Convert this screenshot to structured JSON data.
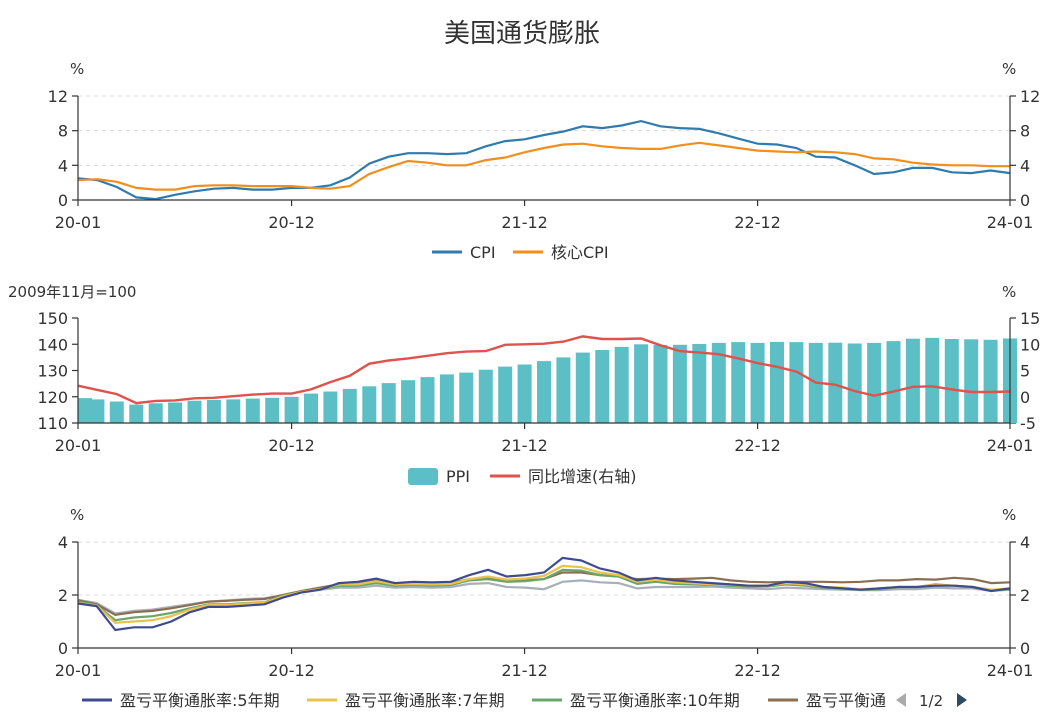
{
  "title": "美国通货膨胀",
  "colors": {
    "cpi": "#2f7bae",
    "core_cpi": "#f28e1c",
    "ppi": "#5bbfc5",
    "ppi_yoy": "#e0524c",
    "be5": "#3e4c8f",
    "be7": "#e8c24b",
    "be10": "#68a66d",
    "be_next": "#8b6e52",
    "be_hidden": "#a7b0b8",
    "axis": "#333333",
    "pager_disabled": "#aaaaaa",
    "pager_active": "#2e4a63"
  },
  "chart_data": [
    {
      "type": "line",
      "x_range": [
        "2020-01",
        "2024-01"
      ],
      "x_ticks": [
        "20-01",
        "20-12",
        "21-12",
        "22-12",
        "24-01"
      ],
      "left_unit": "%",
      "right_unit": "%",
      "ylim": [
        0,
        12
      ],
      "y_ticks": [
        "0",
        "4",
        "8",
        "12"
      ],
      "right_ticks": [
        "0",
        "4",
        "8",
        "12"
      ],
      "grid": true,
      "legend_position": "bottom",
      "series": [
        {
          "name": "CPI",
          "color_key": "cpi",
          "values": [
            2.5,
            2.3,
            1.5,
            0.3,
            0.1,
            0.6,
            1.0,
            1.3,
            1.4,
            1.2,
            1.2,
            1.4,
            1.4,
            1.7,
            2.6,
            4.2,
            5.0,
            5.4,
            5.4,
            5.3,
            5.4,
            6.2,
            6.8,
            7.0,
            7.5,
            7.9,
            8.5,
            8.3,
            8.6,
            9.1,
            8.5,
            8.3,
            8.2,
            7.7,
            7.1,
            6.5,
            6.4,
            6.0,
            5.0,
            4.9,
            4.0,
            3.0,
            3.2,
            3.7,
            3.7,
            3.2,
            3.1,
            3.4,
            3.1
          ]
        },
        {
          "name": "核心CPI",
          "color_key": "core_cpi",
          "values": [
            2.3,
            2.4,
            2.1,
            1.4,
            1.2,
            1.2,
            1.6,
            1.7,
            1.7,
            1.6,
            1.6,
            1.6,
            1.4,
            1.3,
            1.6,
            3.0,
            3.8,
            4.5,
            4.3,
            4.0,
            4.0,
            4.6,
            4.9,
            5.5,
            6.0,
            6.4,
            6.5,
            6.2,
            6.0,
            5.9,
            5.9,
            6.3,
            6.6,
            6.3,
            6.0,
            5.7,
            5.6,
            5.5,
            5.6,
            5.5,
            5.3,
            4.8,
            4.7,
            4.3,
            4.1,
            4.0,
            4.0,
            3.9,
            3.9
          ]
        }
      ]
    },
    {
      "type": "bar+line",
      "x_range": [
        "2020-01",
        "2024-01"
      ],
      "x_ticks": [
        "20-01",
        "20-12",
        "21-12",
        "22-12",
        "24-01"
      ],
      "left_unit": "2009年11月=100",
      "right_unit": "%",
      "ylim": [
        110,
        150
      ],
      "y_ticks": [
        "110",
        "120",
        "130",
        "140",
        "150"
      ],
      "right_ylim": [
        -5,
        15
      ],
      "right_ticks": [
        "-5",
        "0",
        "5",
        "10",
        "15"
      ],
      "grid": false,
      "legend_position": "bottom",
      "series": [
        {
          "name": "PPI",
          "type": "bar",
          "axis": "left",
          "color_key": "ppi",
          "values": [
            119.5,
            119.0,
            118.2,
            117.0,
            117.5,
            117.8,
            118.5,
            118.8,
            119.0,
            119.3,
            119.6,
            120.0,
            121.2,
            122.0,
            123.0,
            124.0,
            125.2,
            126.3,
            127.5,
            128.5,
            129.2,
            130.3,
            131.5,
            132.3,
            133.6,
            135.0,
            136.8,
            137.8,
            139.0,
            140.0,
            139.7,
            139.8,
            140.1,
            140.5,
            140.8,
            140.5,
            140.9,
            140.8,
            140.5,
            140.6,
            140.3,
            140.5,
            141.2,
            142.1,
            142.4,
            142.0,
            141.9,
            141.7,
            142.2
          ]
        },
        {
          "name": "同比增速(右轴)",
          "type": "line",
          "axis": "right",
          "color_key": "ppi_yoy",
          "values": [
            2.1,
            1.3,
            0.5,
            -1.2,
            -0.8,
            -0.7,
            -0.3,
            -0.2,
            0.1,
            0.4,
            0.6,
            0.6,
            1.4,
            2.8,
            4.0,
            6.3,
            6.9,
            7.3,
            7.8,
            8.3,
            8.6,
            8.7,
            9.9,
            10.0,
            10.1,
            10.5,
            11.5,
            11.0,
            11.0,
            11.1,
            9.8,
            8.7,
            8.4,
            8.1,
            7.3,
            6.4,
            5.7,
            4.8,
            2.7,
            2.3,
            1.1,
            0.2,
            1.0,
            1.9,
            2.0,
            1.4,
            0.9,
            0.9,
            1.0
          ]
        }
      ]
    },
    {
      "type": "line",
      "x_range": [
        "2020-01",
        "2024-01"
      ],
      "x_ticks": [
        "20-01",
        "20-12",
        "21-12",
        "22-12",
        "24-01"
      ],
      "left_unit": "%",
      "right_unit": "%",
      "ylim": [
        0,
        4
      ],
      "y_ticks": [
        "0",
        "2",
        "4"
      ],
      "right_ticks": [
        "0",
        "2",
        "4"
      ],
      "grid": true,
      "legend_position": "bottom",
      "legend_page": "1/2",
      "legend_truncated_label": "盈亏平衡通",
      "series": [
        {
          "name": "盈亏平衡通胀率:5年期",
          "color_key": "be5",
          "values": [
            1.68,
            1.58,
            0.68,
            0.78,
            0.78,
            1.0,
            1.35,
            1.55,
            1.55,
            1.6,
            1.65,
            1.9,
            2.1,
            2.2,
            2.45,
            2.5,
            2.62,
            2.45,
            2.5,
            2.48,
            2.5,
            2.75,
            2.95,
            2.7,
            2.75,
            2.85,
            3.4,
            3.3,
            3.0,
            2.85,
            2.55,
            2.65,
            2.55,
            2.5,
            2.45,
            2.4,
            2.35,
            2.35,
            2.5,
            2.45,
            2.3,
            2.25,
            2.2,
            2.25,
            2.3,
            2.3,
            2.35,
            2.35,
            2.3,
            2.15,
            2.25
          ]
        },
        {
          "name": "盈亏平衡通胀率:7年期",
          "color_key": "be7",
          "values": [
            1.7,
            1.6,
            0.95,
            1.0,
            1.05,
            1.2,
            1.45,
            1.62,
            1.62,
            1.68,
            1.7,
            1.95,
            2.12,
            2.22,
            2.4,
            2.4,
            2.52,
            2.4,
            2.42,
            2.4,
            2.42,
            2.6,
            2.7,
            2.58,
            2.62,
            2.72,
            3.1,
            3.05,
            2.85,
            2.75,
            2.5,
            2.58,
            2.48,
            2.45,
            2.4,
            2.38,
            2.35,
            2.35,
            2.45,
            2.4,
            2.3,
            2.28,
            2.22,
            2.25,
            2.3,
            2.3,
            2.38,
            2.35,
            2.3,
            2.2,
            2.25
          ]
        },
        {
          "name": "盈亏平衡通胀率:10年期",
          "color_key": "be10",
          "values": [
            1.75,
            1.62,
            1.05,
            1.15,
            1.2,
            1.32,
            1.5,
            1.65,
            1.65,
            1.7,
            1.72,
            1.98,
            2.12,
            2.22,
            2.35,
            2.35,
            2.45,
            2.35,
            2.38,
            2.35,
            2.38,
            2.55,
            2.6,
            2.5,
            2.52,
            2.6,
            2.95,
            2.92,
            2.75,
            2.7,
            2.42,
            2.5,
            2.42,
            2.4,
            2.38,
            2.35,
            2.32,
            2.32,
            2.4,
            2.35,
            2.28,
            2.25,
            2.2,
            2.22,
            2.3,
            2.3,
            2.4,
            2.35,
            2.3,
            2.18,
            2.22
          ]
        },
        {
          "name": "",
          "color_key": "be_next",
          "values": [
            1.8,
            1.65,
            1.25,
            1.35,
            1.4,
            1.5,
            1.62,
            1.75,
            1.78,
            1.82,
            1.85,
            2.0,
            2.15,
            2.28,
            2.4,
            2.42,
            2.55,
            2.4,
            2.42,
            2.4,
            2.45,
            2.6,
            2.65,
            2.55,
            2.55,
            2.6,
            2.85,
            2.85,
            2.75,
            2.7,
            2.6,
            2.62,
            2.6,
            2.62,
            2.65,
            2.55,
            2.5,
            2.48,
            2.5,
            2.5,
            2.5,
            2.48,
            2.5,
            2.55,
            2.55,
            2.6,
            2.58,
            2.65,
            2.6,
            2.45,
            2.48
          ]
        },
        {
          "name": "",
          "color_key": "be_hidden",
          "values": [
            1.82,
            1.7,
            1.3,
            1.4,
            1.45,
            1.55,
            1.65,
            1.75,
            1.8,
            1.85,
            1.88,
            1.98,
            2.1,
            2.2,
            2.28,
            2.28,
            2.35,
            2.28,
            2.3,
            2.28,
            2.3,
            2.42,
            2.45,
            2.3,
            2.28,
            2.22,
            2.5,
            2.55,
            2.48,
            2.45,
            2.25,
            2.3,
            2.3,
            2.3,
            2.32,
            2.28,
            2.25,
            2.22,
            2.28,
            2.25,
            2.22,
            2.2,
            2.18,
            2.18,
            2.22,
            2.22,
            2.28,
            2.25,
            2.25,
            2.15,
            2.2
          ]
        }
      ]
    }
  ]
}
